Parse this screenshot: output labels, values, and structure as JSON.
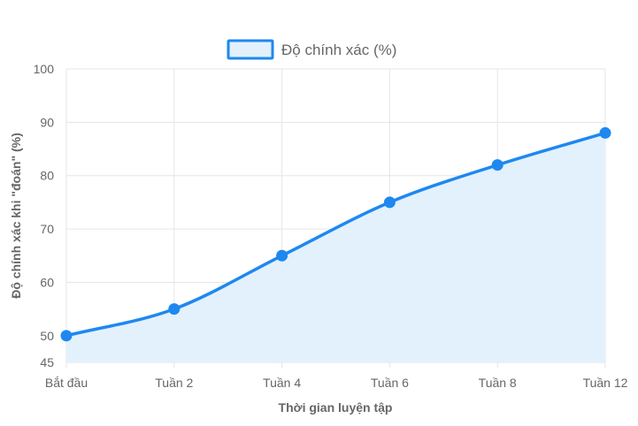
{
  "chart_data": {
    "type": "line",
    "categories": [
      "Bắt đầu",
      "Tuần 2",
      "Tuần 4",
      "Tuần 6",
      "Tuần 8",
      "Tuần 12"
    ],
    "series": [
      {
        "name": "Độ chính xác (%)",
        "values": [
          50,
          55,
          65,
          75,
          82,
          88
        ]
      }
    ],
    "xlabel": "Thời gian luyện tập",
    "ylabel": "Độ chính xác khi \"đoán\" (%)",
    "ylim": [
      45,
      100
    ],
    "yticks": [
      45,
      50,
      60,
      70,
      80,
      90,
      100
    ],
    "grid": true,
    "filled_area": true,
    "smooth": true,
    "legend_position": "top-center",
    "colors": {
      "line": "#1e88f0",
      "fill": "#e3f1fd",
      "grid": "#e5e5e5",
      "text": "#666666"
    }
  }
}
